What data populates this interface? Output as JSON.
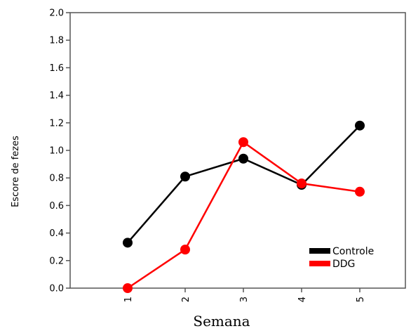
{
  "chart_data": {
    "type": "line",
    "title": "",
    "xlabel": "Semana",
    "ylabel": "Escore de fezes",
    "x": [
      "1",
      "2",
      "3",
      "4",
      "5"
    ],
    "ylim": [
      0,
      2.0
    ],
    "yticks": [
      "0.0",
      "0.2",
      "0.4",
      "0.6",
      "0.8",
      "1.0",
      "1.2",
      "1.4",
      "1.6",
      "1.8",
      "2.0"
    ],
    "grid": false,
    "legend_position": "bottom-right",
    "series": [
      {
        "name": "Controle",
        "color": "#000000",
        "values": [
          0.33,
          0.81,
          0.94,
          0.75,
          1.18
        ]
      },
      {
        "name": "DDG",
        "color": "#ff0000",
        "values": [
          0.0,
          0.28,
          1.06,
          0.76,
          0.7
        ]
      }
    ]
  }
}
